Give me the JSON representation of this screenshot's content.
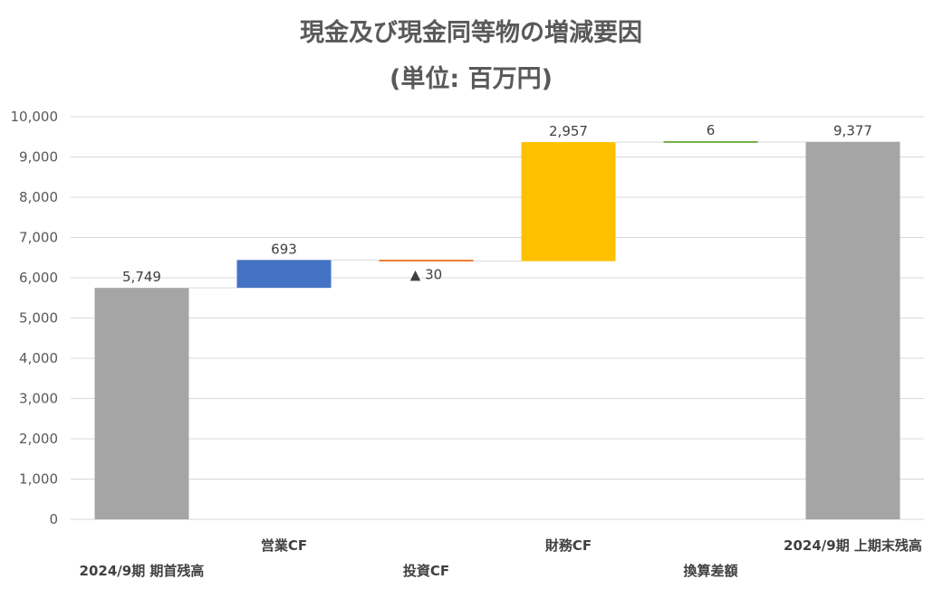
{
  "chart_data": {
    "type": "bar",
    "subtype": "waterfall",
    "title": "現金及び現金同等物の増減要因",
    "subtitle": "(単位: 百万円)",
    "xlabel": "",
    "ylabel": "",
    "ylim": [
      0,
      10000
    ],
    "yticks": [
      "0",
      "1,000",
      "2,000",
      "3,000",
      "4,000",
      "5,000",
      "6,000",
      "7,000",
      "8,000",
      "9,000",
      "10,000"
    ],
    "grid": true,
    "legend": "none",
    "categories": [
      "2024/9期 期首残高",
      "営業CF",
      "投資CF",
      "財務CF",
      "換算差額",
      "2024/9期 上期末残高"
    ],
    "bars": [
      {
        "kind": "total",
        "base": 0,
        "value": 5749,
        "label": "5,749",
        "color": "#a5a5a5"
      },
      {
        "kind": "delta",
        "base": 5749,
        "value": 693,
        "label": "693",
        "color": "#4472c4"
      },
      {
        "kind": "delta",
        "base": 6442,
        "value": -30,
        "label": "▲ 30",
        "color": "#ed7d31"
      },
      {
        "kind": "delta",
        "base": 6412,
        "value": 2957,
        "label": "2,957",
        "color": "#ffc000"
      },
      {
        "kind": "delta",
        "base": 9369,
        "value": 6,
        "label": "6",
        "color": "#70ad47"
      },
      {
        "kind": "total",
        "base": 0,
        "value": 9377,
        "label": "9,377",
        "color": "#a5a5a5"
      }
    ]
  }
}
